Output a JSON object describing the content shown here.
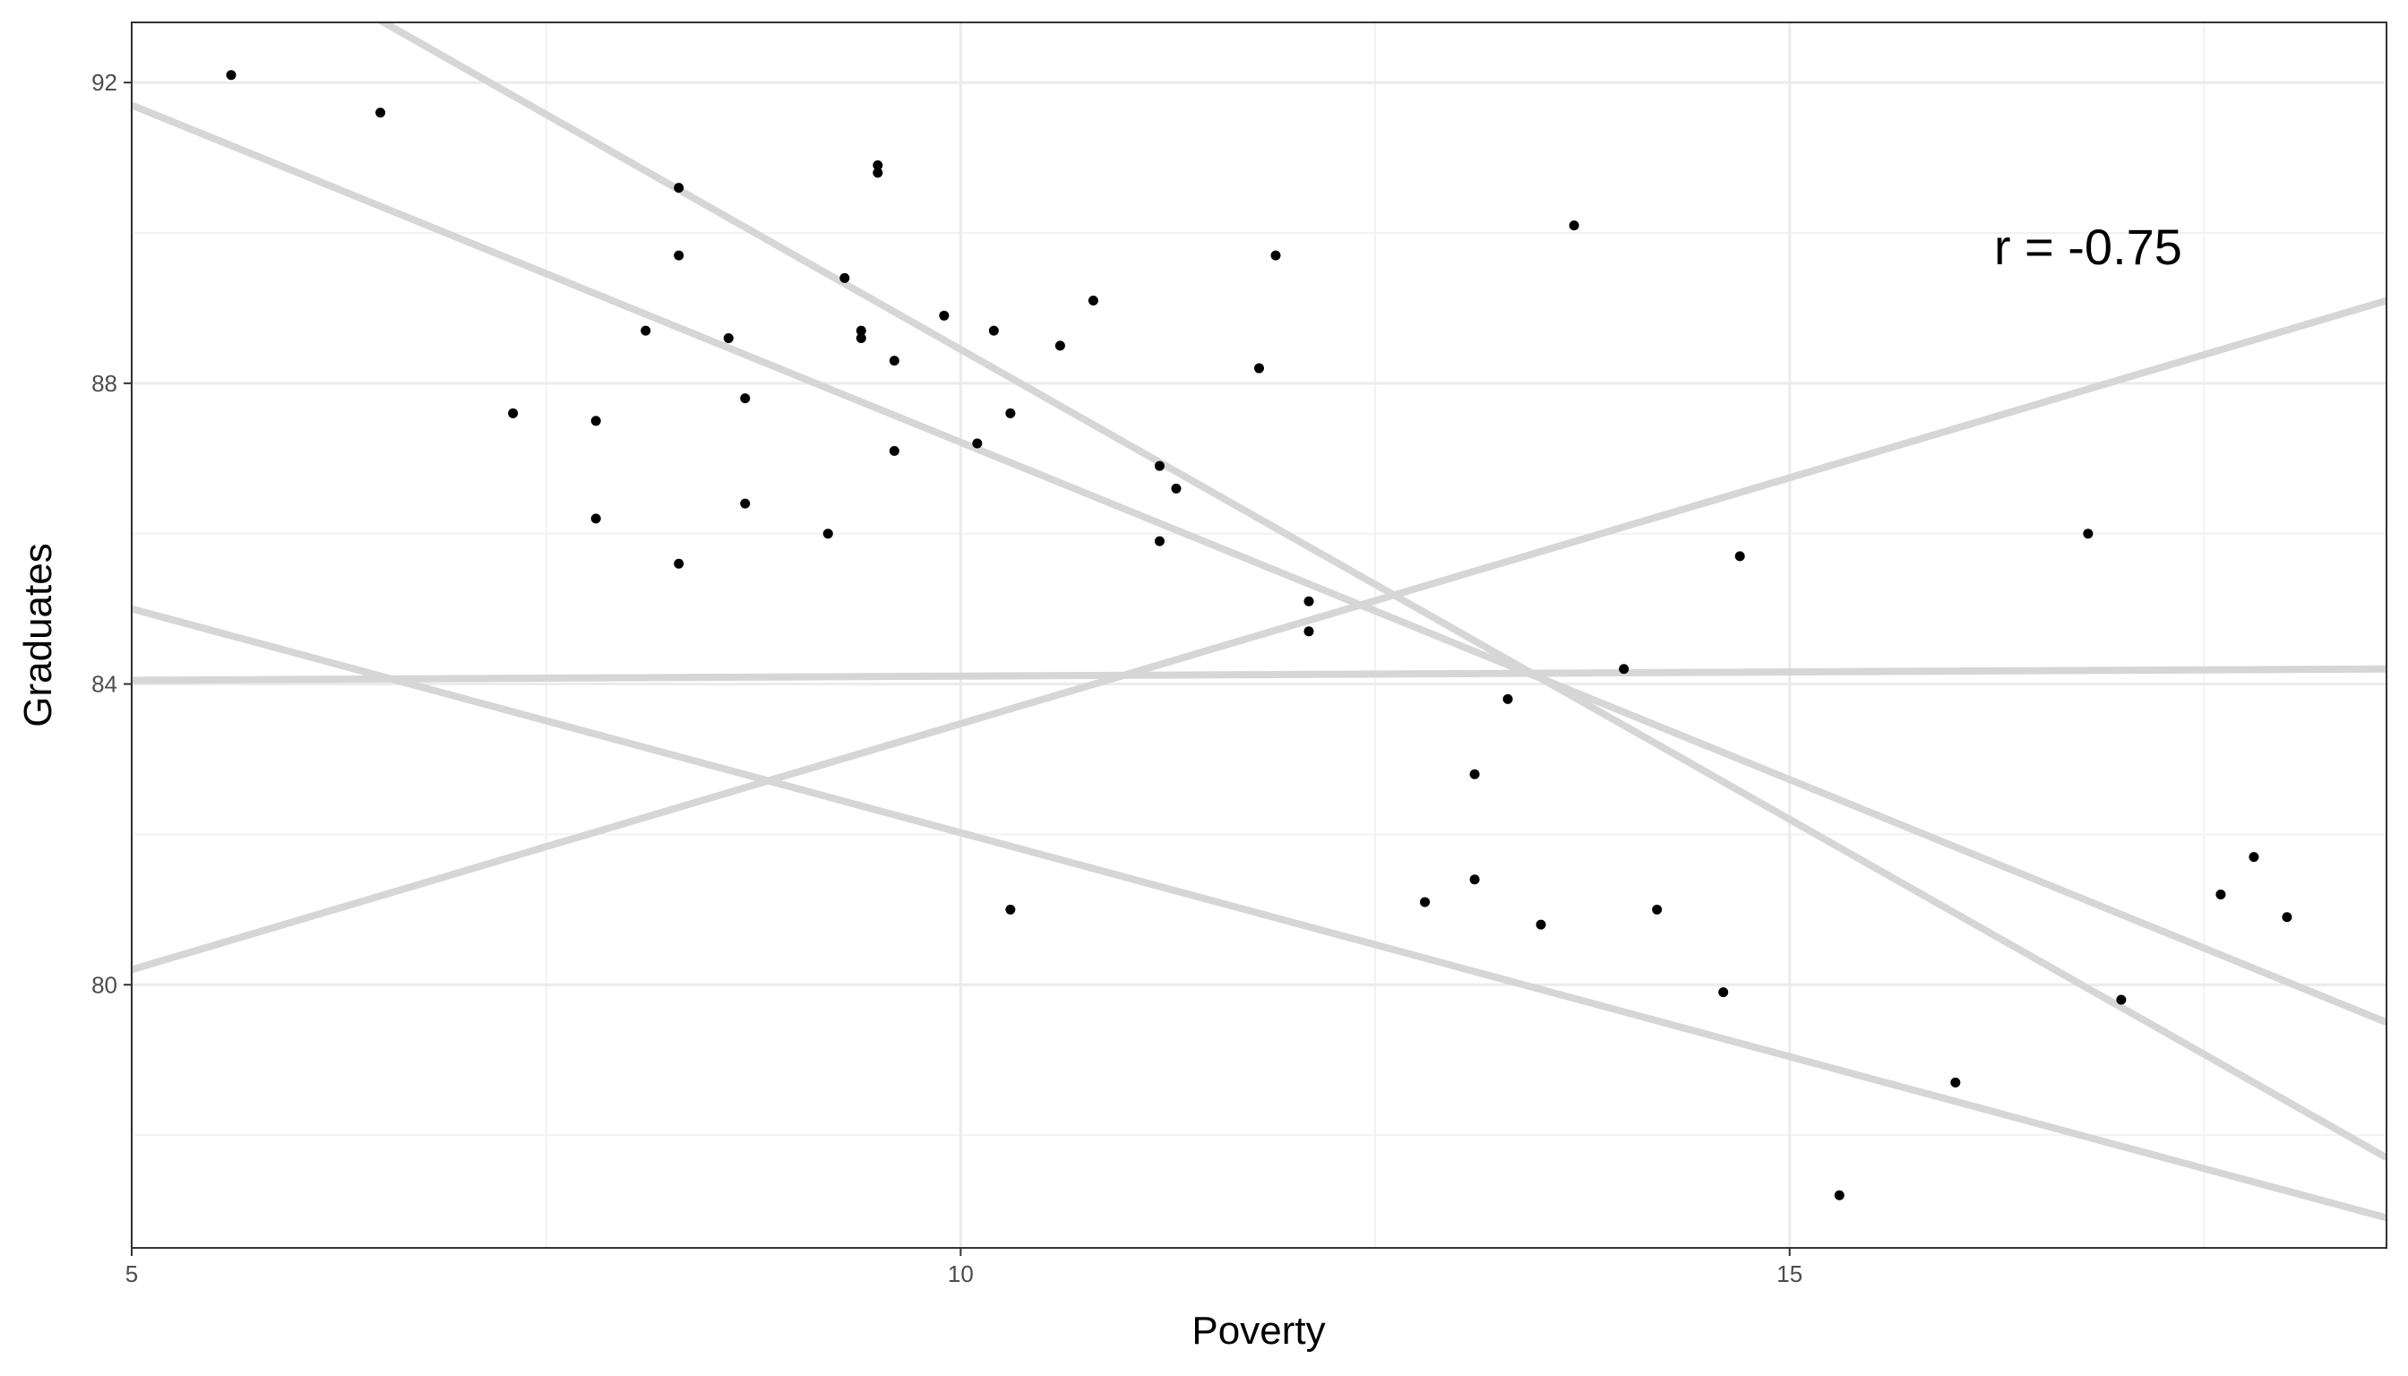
{
  "chart_data": {
    "type": "scatter",
    "xlabel": "Poverty",
    "ylabel": "Graduates",
    "xlim": [
      5,
      18.6
    ],
    "ylim": [
      76.5,
      92.8
    ],
    "x_ticks": [
      5,
      10,
      15
    ],
    "x_tick_labels": [
      "5",
      "10",
      "15"
    ],
    "x_minor_ticks": [
      7.5,
      12.5,
      17.5
    ],
    "y_ticks": [
      80,
      84,
      88,
      92
    ],
    "y_tick_labels": [
      "80",
      "84",
      "88",
      "92"
    ],
    "y_minor_ticks": [
      78,
      82,
      86,
      90
    ],
    "grid": true,
    "annotation": "r = -0.75",
    "annotation_position": {
      "x": 16.8,
      "y": 89.8
    },
    "points": [
      {
        "x": 5.6,
        "y": 92.1
      },
      {
        "x": 6.5,
        "y": 91.6
      },
      {
        "x": 7.3,
        "y": 87.6
      },
      {
        "x": 7.8,
        "y": 87.5
      },
      {
        "x": 7.8,
        "y": 86.2
      },
      {
        "x": 8.1,
        "y": 88.7
      },
      {
        "x": 8.3,
        "y": 90.6
      },
      {
        "x": 8.3,
        "y": 89.7
      },
      {
        "x": 8.3,
        "y": 85.6
      },
      {
        "x": 8.6,
        "y": 88.6
      },
      {
        "x": 8.7,
        "y": 87.8
      },
      {
        "x": 8.7,
        "y": 86.4
      },
      {
        "x": 9.2,
        "y": 86.0
      },
      {
        "x": 9.3,
        "y": 89.4
      },
      {
        "x": 9.4,
        "y": 88.7
      },
      {
        "x": 9.4,
        "y": 88.6
      },
      {
        "x": 9.5,
        "y": 90.9
      },
      {
        "x": 9.5,
        "y": 90.8
      },
      {
        "x": 9.6,
        "y": 88.3
      },
      {
        "x": 9.6,
        "y": 87.1
      },
      {
        "x": 9.9,
        "y": 88.9
      },
      {
        "x": 10.1,
        "y": 87.2
      },
      {
        "x": 10.2,
        "y": 88.7
      },
      {
        "x": 10.3,
        "y": 87.6
      },
      {
        "x": 10.3,
        "y": 81.0
      },
      {
        "x": 10.6,
        "y": 88.5
      },
      {
        "x": 10.8,
        "y": 89.1
      },
      {
        "x": 11.2,
        "y": 86.9
      },
      {
        "x": 11.2,
        "y": 85.9
      },
      {
        "x": 11.3,
        "y": 86.6
      },
      {
        "x": 11.8,
        "y": 88.2
      },
      {
        "x": 11.9,
        "y": 89.7
      },
      {
        "x": 12.1,
        "y": 85.1
      },
      {
        "x": 12.1,
        "y": 84.7
      },
      {
        "x": 12.8,
        "y": 81.1
      },
      {
        "x": 13.1,
        "y": 82.8
      },
      {
        "x": 13.1,
        "y": 81.4
      },
      {
        "x": 13.3,
        "y": 83.8
      },
      {
        "x": 13.5,
        "y": 80.8
      },
      {
        "x": 13.7,
        "y": 90.1
      },
      {
        "x": 14.0,
        "y": 84.2
      },
      {
        "x": 14.2,
        "y": 81.0
      },
      {
        "x": 14.6,
        "y": 79.9
      },
      {
        "x": 14.7,
        "y": 85.7
      },
      {
        "x": 15.3,
        "y": 77.2
      },
      {
        "x": 16.0,
        "y": 78.7
      },
      {
        "x": 16.8,
        "y": 86.0
      },
      {
        "x": 17.0,
        "y": 79.8
      },
      {
        "x": 17.6,
        "y": 81.2
      },
      {
        "x": 17.8,
        "y": 81.7
      },
      {
        "x": 18.0,
        "y": 80.9
      }
    ],
    "lines": [
      {
        "x1": 5,
        "y1": 91.7,
        "x2": 18.6,
        "y2": 79.5
      },
      {
        "x1": 5,
        "y1": 94.7,
        "x2": 18.6,
        "y2": 77.7
      },
      {
        "x1": 5,
        "y1": 80.2,
        "x2": 18.6,
        "y2": 89.1
      },
      {
        "x1": 5,
        "y1": 84.05,
        "x2": 18.6,
        "y2": 84.2
      },
      {
        "x1": 5,
        "y1": 85.0,
        "x2": 18.6,
        "y2": 76.9
      }
    ],
    "colors": {
      "points": "#000000",
      "lines": "#d6d6d6",
      "major_grid": "#ebebeb",
      "minor_grid": "#f2f2f2",
      "panel_border": "#333333"
    }
  }
}
